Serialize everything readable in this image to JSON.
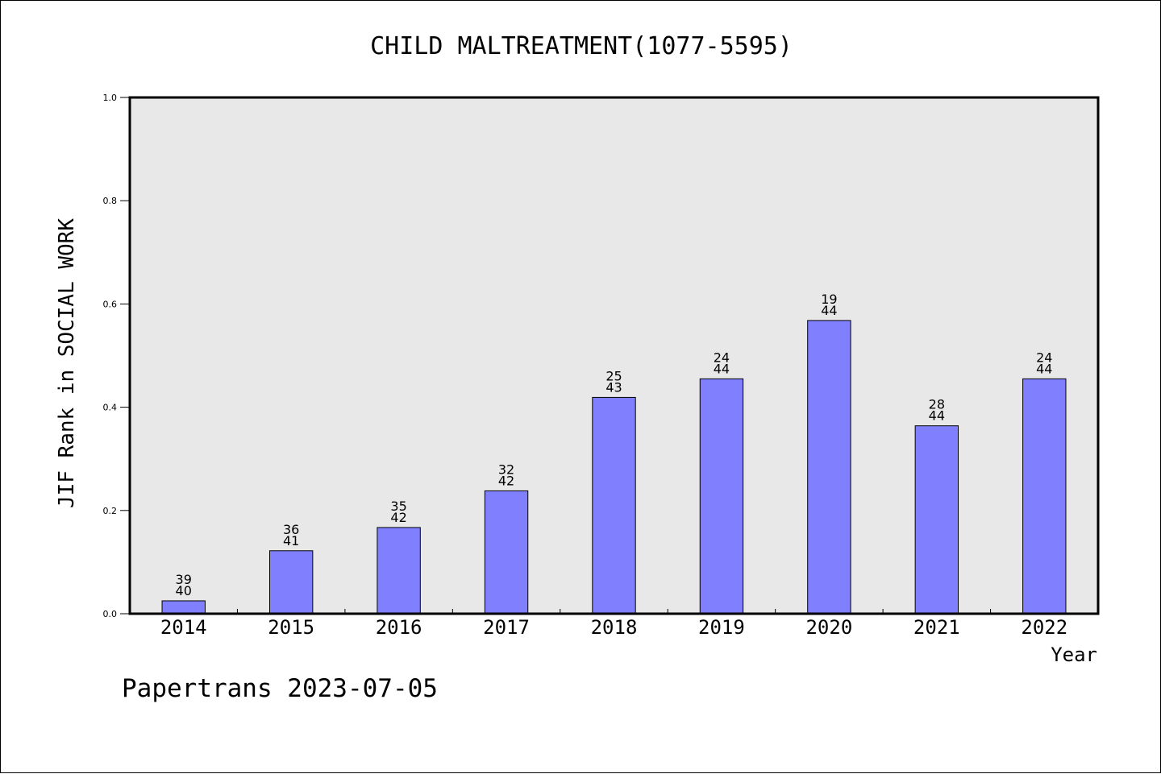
{
  "chart_data": {
    "type": "bar",
    "title": "CHILD MALTREATMENT(1077-5595)",
    "xlabel": "Year",
    "ylabel": "JIF Rank in SOCIAL WORK",
    "ylim": [
      0,
      1.0
    ],
    "yticks": [
      "0.0",
      "0.2",
      "0.4",
      "0.6",
      "0.8",
      "1.0"
    ],
    "grid": false,
    "categories": [
      "2014",
      "2015",
      "2016",
      "2017",
      "2018",
      "2019",
      "2020",
      "2021",
      "2022"
    ],
    "values": [
      0.025,
      0.122,
      0.167,
      0.238,
      0.419,
      0.455,
      0.568,
      0.364,
      0.455
    ],
    "rank": [
      "39",
      "36",
      "35",
      "32",
      "25",
      "24",
      "19",
      "28",
      "24"
    ],
    "total": [
      "40",
      "41",
      "42",
      "42",
      "43",
      "44",
      "44",
      "44",
      "44"
    ],
    "colors": {
      "bar": "#8080ff",
      "plot_background": "#e8e8e8",
      "axis": "#000000"
    }
  },
  "footer": "Papertrans 2023-07-05"
}
